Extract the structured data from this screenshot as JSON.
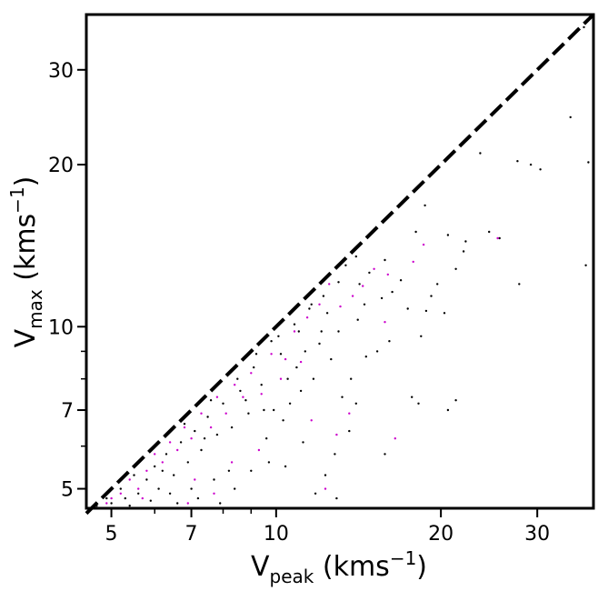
{
  "chart_data": {
    "type": "scatter",
    "xscale": "log",
    "yscale": "log",
    "xlim": [
      4.5,
      38
    ],
    "ylim": [
      4.6,
      38
    ],
    "xticks": [
      {
        "value": 5,
        "label": "5"
      },
      {
        "value": 7,
        "label": "7"
      },
      {
        "value": 10,
        "label": "10"
      },
      {
        "value": 20,
        "label": "20"
      },
      {
        "value": 30,
        "label": "30"
      }
    ],
    "yticks": [
      {
        "value": 5,
        "label": "5"
      },
      {
        "value": 7,
        "label": "7"
      },
      {
        "value": 10,
        "label": "10"
      },
      {
        "value": 20,
        "label": "20"
      },
      {
        "value": 30,
        "label": "30"
      }
    ],
    "xminor_ticks": [
      6,
      8,
      9
    ],
    "yminor_ticks": [
      6,
      8,
      9
    ],
    "xlabel": {
      "main": "V",
      "sub": "peak",
      "unit_open": " (kms",
      "sup": "−1",
      "unit_close": ")"
    },
    "ylabel": {
      "main": "V",
      "sub": "max",
      "unit_open": " (kms",
      "sup": "−1",
      "unit_close": ")"
    },
    "reference_line": {
      "description": "1:1 line",
      "from": [
        4.5,
        4.5
      ],
      "to": [
        38,
        38
      ],
      "style": "dashed",
      "color": "#000000"
    },
    "series": [
      {
        "color": "#000000",
        "points": [
          [
            36.5,
            36.0
          ],
          [
            34.5,
            24.5
          ],
          [
            37.2,
            20.2
          ],
          [
            36.8,
            13.0
          ],
          [
            30.4,
            19.6
          ],
          [
            29.2,
            20.0
          ],
          [
            27.6,
            20.3
          ],
          [
            27.8,
            12.0
          ],
          [
            23.6,
            21.0
          ],
          [
            22.2,
            14.4
          ],
          [
            24.5,
            15.0
          ],
          [
            25.6,
            14.6
          ],
          [
            22.0,
            13.8
          ],
          [
            20.6,
            14.8
          ],
          [
            21.3,
            12.8
          ],
          [
            19.7,
            12.0
          ],
          [
            18.7,
            16.8
          ],
          [
            18.0,
            15.0
          ],
          [
            19.2,
            11.4
          ],
          [
            18.8,
            10.7
          ],
          [
            20.3,
            10.6
          ],
          [
            18.4,
            9.6
          ],
          [
            17.4,
            10.8
          ],
          [
            16.9,
            12.2
          ],
          [
            16.3,
            11.6
          ],
          [
            15.8,
            13.3
          ],
          [
            15.6,
            11.3
          ],
          [
            14.8,
            12.6
          ],
          [
            14.5,
            11.0
          ],
          [
            14.1,
            10.3
          ],
          [
            14.2,
            12.0
          ],
          [
            13.4,
            13.0
          ],
          [
            16.1,
            9.4
          ],
          [
            15.3,
            9.0
          ],
          [
            14.6,
            8.8
          ],
          [
            17.7,
            7.4
          ],
          [
            18.2,
            7.2
          ],
          [
            21.3,
            7.3
          ],
          [
            20.6,
            7.0
          ],
          [
            18.5,
            4.6
          ],
          [
            15.8,
            5.8
          ],
          [
            14.0,
            7.2
          ],
          [
            13.2,
            7.4
          ],
          [
            13.6,
            6.4
          ],
          [
            12.8,
            5.8
          ],
          [
            12.3,
            5.3
          ],
          [
            12.9,
            4.8
          ],
          [
            13.7,
            8.0
          ],
          [
            12.6,
            8.7
          ],
          [
            12.0,
            9.3
          ],
          [
            13.0,
            9.8
          ],
          [
            12.4,
            10.6
          ],
          [
            11.6,
            11.0
          ],
          [
            12.1,
            9.8
          ],
          [
            11.3,
            9.0
          ],
          [
            10.9,
            8.4
          ],
          [
            11.7,
            8.0
          ],
          [
            11.1,
            7.6
          ],
          [
            10.6,
            7.2
          ],
          [
            10.2,
            8.9
          ],
          [
            9.8,
            9.4
          ],
          [
            9.9,
            7.0
          ],
          [
            9.4,
            7.8
          ],
          [
            9.1,
            8.4
          ],
          [
            10.3,
            6.7
          ],
          [
            9.6,
            6.2
          ],
          [
            8.9,
            6.9
          ],
          [
            8.6,
            7.6
          ],
          [
            8.3,
            6.5
          ],
          [
            8.0,
            7.2
          ],
          [
            7.8,
            6.3
          ],
          [
            7.5,
            6.8
          ],
          [
            7.3,
            5.9
          ],
          [
            7.1,
            6.4
          ],
          [
            6.9,
            5.6
          ],
          [
            6.7,
            6.1
          ],
          [
            6.5,
            5.3
          ],
          [
            6.3,
            5.8
          ],
          [
            6.1,
            5.0
          ],
          [
            6.0,
            5.5
          ],
          [
            5.8,
            5.2
          ],
          [
            5.6,
            4.9
          ],
          [
            5.5,
            5.3
          ],
          [
            5.3,
            4.8
          ],
          [
            5.2,
            5.0
          ],
          [
            5.0,
            4.7
          ],
          [
            4.9,
            4.8
          ],
          [
            4.8,
            4.6
          ],
          [
            4.7,
            4.65
          ],
          [
            6.6,
            4.7
          ],
          [
            7.2,
            4.8
          ],
          [
            7.9,
            4.7
          ],
          [
            8.4,
            5.0
          ],
          [
            9.0,
            5.4
          ],
          [
            9.7,
            5.6
          ],
          [
            10.4,
            5.5
          ],
          [
            11.2,
            6.1
          ],
          [
            11.8,
            4.9
          ],
          [
            8.2,
            5.4
          ],
          [
            7.7,
            5.2
          ],
          [
            7.0,
            5.0
          ],
          [
            6.4,
            4.9
          ],
          [
            5.9,
            4.75
          ],
          [
            5.4,
            4.65
          ],
          [
            6.8,
            6.6
          ],
          [
            7.6,
            7.3
          ],
          [
            8.5,
            8.0
          ],
          [
            9.2,
            8.9
          ],
          [
            10.1,
            9.6
          ],
          [
            10.8,
            10.1
          ],
          [
            11.5,
            10.8
          ],
          [
            12.2,
            11.4
          ],
          [
            13.0,
            12.1
          ],
          [
            14.0,
            13.5
          ],
          [
            8.8,
            7.3
          ],
          [
            9.5,
            7.0
          ],
          [
            10.5,
            8.0
          ],
          [
            11.0,
            9.8
          ],
          [
            7.4,
            6.2
          ],
          [
            6.2,
            5.4
          ]
        ]
      },
      {
        "color": "#cc00cc",
        "points": [
          [
            25.4,
            14.6
          ],
          [
            18.6,
            14.2
          ],
          [
            17.8,
            13.2
          ],
          [
            16.0,
            12.5
          ],
          [
            15.1,
            12.8
          ],
          [
            14.4,
            11.9
          ],
          [
            13.8,
            11.4
          ],
          [
            13.1,
            10.9
          ],
          [
            15.8,
            10.2
          ],
          [
            12.5,
            12.0
          ],
          [
            12.0,
            11.0
          ],
          [
            11.4,
            10.4
          ],
          [
            10.8,
            9.8
          ],
          [
            10.4,
            8.7
          ],
          [
            11.1,
            8.6
          ],
          [
            10.2,
            8.0
          ],
          [
            9.8,
            8.9
          ],
          [
            9.4,
            7.5
          ],
          [
            9.0,
            8.2
          ],
          [
            8.7,
            7.4
          ],
          [
            8.4,
            7.8
          ],
          [
            8.1,
            6.9
          ],
          [
            7.8,
            7.4
          ],
          [
            7.6,
            6.5
          ],
          [
            7.3,
            6.9
          ],
          [
            7.0,
            6.2
          ],
          [
            6.8,
            6.5
          ],
          [
            6.6,
            5.9
          ],
          [
            6.4,
            6.1
          ],
          [
            6.2,
            5.6
          ],
          [
            6.0,
            5.8
          ],
          [
            5.8,
            5.4
          ],
          [
            5.6,
            5.0
          ],
          [
            5.4,
            5.2
          ],
          [
            5.2,
            4.9
          ],
          [
            5.0,
            4.8
          ],
          [
            4.9,
            4.7
          ],
          [
            11.6,
            6.7
          ],
          [
            12.9,
            6.3
          ],
          [
            13.6,
            6.9
          ],
          [
            16.5,
            6.2
          ],
          [
            12.3,
            5.0
          ],
          [
            9.3,
            5.9
          ],
          [
            8.3,
            5.6
          ],
          [
            7.1,
            5.2
          ],
          [
            7.7,
            4.9
          ],
          [
            6.9,
            4.7
          ],
          [
            5.7,
            4.8
          ]
        ]
      }
    ]
  }
}
